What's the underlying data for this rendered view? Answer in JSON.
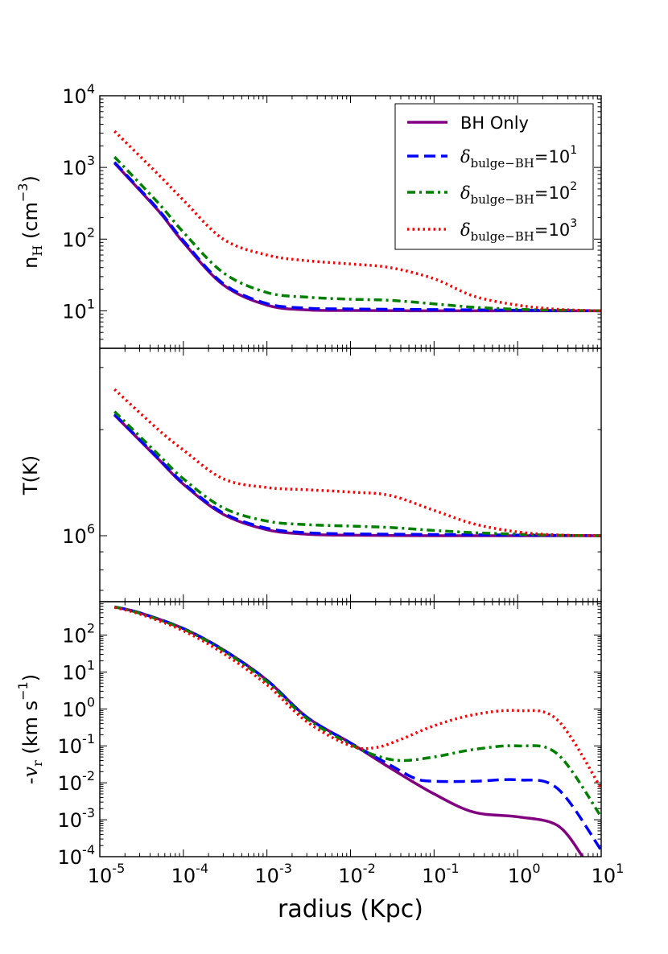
{
  "chart_data": [
    {
      "type": "line",
      "panel": "top",
      "ylabel": "n_H (cm^-3)",
      "ylabel_main": "n",
      "ylabel_sub": "H",
      "ylabel_unit": "(cm",
      "ylabel_unit_sup": "−3",
      "ylabel_close": ")",
      "xscale": "log",
      "yscale": "log",
      "xlim": [
        1e-05,
        10
      ],
      "ylim": [
        3,
        10000
      ],
      "yticks": [
        {
          "value": 10,
          "base": "10",
          "exp": "1"
        },
        {
          "value": 100,
          "base": "10",
          "exp": "2"
        },
        {
          "value": 1000,
          "base": "10",
          "exp": "3"
        },
        {
          "value": 10000,
          "base": "10",
          "exp": "4"
        }
      ],
      "legend": {
        "placement": "top-right",
        "entries": [
          {
            "series": "BH Only",
            "text": "BH Only"
          },
          {
            "series": "delta1",
            "prefix": "δ",
            "sub": "bulge−BH",
            "eq": "=10",
            "sup": "1"
          },
          {
            "series": "delta2",
            "prefix": "δ",
            "sub": "bulge−BH",
            "eq": "=10",
            "sup": "2"
          },
          {
            "series": "delta3",
            "prefix": "δ",
            "sub": "bulge−BH",
            "eq": "=10",
            "sup": "3"
          }
        ]
      },
      "series": [
        {
          "name": "BH Only",
          "x": [
            1.5e-05,
            5e-05,
            0.0001,
            0.0003,
            0.001,
            0.003,
            0.01,
            0.1,
            1,
            10
          ],
          "y": [
            1150,
            250,
            90,
            23,
            12,
            10.3,
            10.1,
            10.0,
            10.0,
            10.0
          ]
        },
        {
          "name": "delta1",
          "x": [
            1.5e-05,
            5e-05,
            0.0001,
            0.0003,
            0.001,
            0.003,
            0.01,
            0.1,
            1,
            10
          ],
          "y": [
            1180,
            260,
            95,
            24,
            12.6,
            10.9,
            10.6,
            10.4,
            10.2,
            10.0
          ]
        },
        {
          "name": "delta2",
          "x": [
            1.5e-05,
            5e-05,
            0.0001,
            0.0003,
            0.001,
            0.003,
            0.01,
            0.03,
            0.1,
            0.3,
            1,
            3,
            10
          ],
          "y": [
            1400,
            320,
            125,
            34,
            18,
            15.5,
            14.5,
            14,
            12.5,
            11.2,
            10.5,
            10.2,
            10.0
          ]
        },
        {
          "name": "delta3",
          "x": [
            1.5e-05,
            5e-05,
            0.0001,
            0.0003,
            0.001,
            0.003,
            0.01,
            0.03,
            0.1,
            0.3,
            1,
            3,
            10
          ],
          "y": [
            3200,
            800,
            350,
            100,
            60,
            50,
            45,
            40,
            28,
            16,
            12,
            10.5,
            10.0
          ]
        }
      ]
    },
    {
      "type": "line",
      "panel": "middle",
      "ylabel": "T(K)",
      "xscale": "log",
      "yscale": "log",
      "xlim": [
        1e-05,
        10
      ],
      "ylim": [
        650000,
        3400000
      ],
      "yticks": [
        {
          "value": 1000000,
          "base": "10",
          "exp": "6"
        }
      ],
      "series": [
        {
          "name": "BH Only",
          "x": [
            1.5e-05,
            5e-05,
            0.0001,
            0.0003,
            0.001,
            0.003,
            0.01,
            0.1,
            1,
            10
          ],
          "y": [
            2200000,
            1650000,
            1400000,
            1150000,
            1040000,
            1010000,
            1003000,
            1000000,
            1000000,
            1000000
          ]
        },
        {
          "name": "delta1",
          "x": [
            1.5e-05,
            5e-05,
            0.0001,
            0.0003,
            0.001,
            0.003,
            0.01,
            0.1,
            1,
            10
          ],
          "y": [
            2210000,
            1660000,
            1410000,
            1160000,
            1050000,
            1020000,
            1012000,
            1008000,
            1004000,
            1000000
          ]
        },
        {
          "name": "delta2",
          "x": [
            1.5e-05,
            5e-05,
            0.0001,
            0.0003,
            0.001,
            0.003,
            0.01,
            0.03,
            0.1,
            0.3,
            1,
            3,
            10
          ],
          "y": [
            2250000,
            1700000,
            1450000,
            1200000,
            1100000,
            1075000,
            1065000,
            1055000,
            1035000,
            1020000,
            1010000,
            1003000,
            1000000
          ]
        },
        {
          "name": "delta3",
          "x": [
            1.5e-05,
            5e-05,
            0.0001,
            0.0003,
            0.001,
            0.003,
            0.01,
            0.03,
            0.1,
            0.3,
            1,
            3,
            10
          ],
          "y": [
            2600000,
            2000000,
            1750000,
            1450000,
            1370000,
            1350000,
            1330000,
            1300000,
            1180000,
            1080000,
            1025000,
            1005000,
            1000000
          ]
        }
      ]
    },
    {
      "type": "line",
      "panel": "bottom",
      "ylabel": "-v_r (km s^-1)",
      "ylabel_main": "-",
      "ylabel_var": "v",
      "ylabel_sub": "r",
      "ylabel_unit": " (km s",
      "ylabel_unit_sup": "−1",
      "ylabel_close": ")",
      "xlabel": "radius (Kpc)",
      "xscale": "log",
      "yscale": "log",
      "xlim": [
        1e-05,
        10
      ],
      "ylim": [
        0.0001,
        800
      ],
      "xticks": [
        {
          "value": 1e-05,
          "base": "10",
          "exp": "-5"
        },
        {
          "value": 0.0001,
          "base": "10",
          "exp": "-4"
        },
        {
          "value": 0.001,
          "base": "10",
          "exp": "-3"
        },
        {
          "value": 0.01,
          "base": "10",
          "exp": "-2"
        },
        {
          "value": 0.1,
          "base": "10",
          "exp": "-1"
        },
        {
          "value": 1,
          "base": "10",
          "exp": "0"
        },
        {
          "value": 10,
          "base": "10",
          "exp": "1"
        }
      ],
      "yticks": [
        {
          "value": 0.0001,
          "base": "10",
          "exp": "-4"
        },
        {
          "value": 0.001,
          "base": "10",
          "exp": "-3"
        },
        {
          "value": 0.01,
          "base": "10",
          "exp": "-2"
        },
        {
          "value": 0.1,
          "base": "10",
          "exp": "-1"
        },
        {
          "value": 1,
          "base": "10",
          "exp": "0"
        },
        {
          "value": 10,
          "base": "10",
          "exp": "1"
        },
        {
          "value": 100,
          "base": "10",
          "exp": "2"
        }
      ],
      "series": [
        {
          "name": "BH Only",
          "x": [
            1.5e-05,
            3e-05,
            0.0001,
            0.0003,
            0.001,
            0.003,
            0.01,
            0.03,
            0.1,
            0.3,
            1,
            3,
            6
          ],
          "y": [
            580,
            400,
            150,
            40,
            6,
            0.6,
            0.12,
            0.025,
            0.005,
            0.0016,
            0.0012,
            0.0007,
            0.0001
          ]
        },
        {
          "name": "delta1",
          "x": [
            1.5e-05,
            3e-05,
            0.0001,
            0.0003,
            0.001,
            0.003,
            0.01,
            0.03,
            0.06,
            0.1,
            0.3,
            1,
            3,
            10
          ],
          "y": [
            580,
            400,
            150,
            40,
            6,
            0.6,
            0.12,
            0.03,
            0.013,
            0.011,
            0.011,
            0.012,
            0.007,
            0.00015
          ]
        },
        {
          "name": "delta2",
          "x": [
            1.5e-05,
            3e-05,
            0.0001,
            0.0003,
            0.001,
            0.003,
            0.01,
            0.02,
            0.04,
            0.1,
            0.3,
            1,
            3,
            10
          ],
          "y": [
            580,
            390,
            145,
            38,
            5.5,
            0.55,
            0.11,
            0.055,
            0.04,
            0.05,
            0.08,
            0.1,
            0.06,
            0.0012
          ]
        },
        {
          "name": "delta3",
          "x": [
            1.5e-05,
            3e-05,
            0.0001,
            0.0003,
            0.001,
            0.003,
            0.01,
            0.02,
            0.04,
            0.1,
            0.3,
            1,
            3,
            10
          ],
          "y": [
            560,
            370,
            130,
            32,
            4.5,
            0.45,
            0.1,
            0.09,
            0.15,
            0.35,
            0.7,
            0.9,
            0.5,
            0.007
          ]
        }
      ]
    }
  ],
  "styles": {
    "BH Only": {
      "color": "#800080",
      "dash": "none"
    },
    "delta1": {
      "color": "#0000ff",
      "dash": "14 7"
    },
    "delta2": {
      "color": "#007f00",
      "dash": "10 5 3 5"
    },
    "delta3": {
      "color": "#ff0000",
      "dash": "2.5 4"
    }
  }
}
